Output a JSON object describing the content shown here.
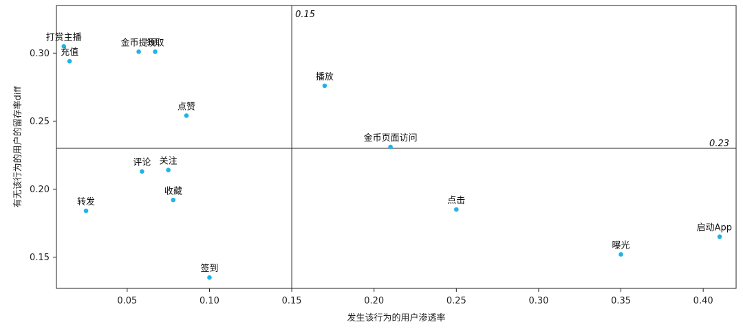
{
  "chart_data": {
    "type": "scatter",
    "xlabel": "发生该行为的用户渗透率",
    "ylabel": "有无该行为的用户的留存率diff",
    "xlim": [
      0.007,
      0.42
    ],
    "ylim": [
      0.127,
      0.335
    ],
    "x_ticks": [
      "0.05",
      "0.10",
      "0.15",
      "0.20",
      "0.25",
      "0.30",
      "0.35",
      "0.40"
    ],
    "y_ticks": [
      "0.15",
      "0.20",
      "0.25",
      "0.30"
    ],
    "grid": false,
    "point_color": "#1fb3e8",
    "reference_lines": [
      {
        "orientation": "vertical",
        "value": 0.15,
        "label": "0.15"
      },
      {
        "orientation": "horizontal",
        "value": 0.23,
        "label": "0.23"
      }
    ],
    "points": [
      {
        "label": "打赏主播",
        "x": 0.0115,
        "y": 0.305
      },
      {
        "label": "充值",
        "x": 0.015,
        "y": 0.294
      },
      {
        "label": "金币提现",
        "x": 0.057,
        "y": 0.301
      },
      {
        "label": "领取",
        "x": 0.067,
        "y": 0.301
      },
      {
        "label": "点赞",
        "x": 0.086,
        "y": 0.254
      },
      {
        "label": "评论",
        "x": 0.059,
        "y": 0.213
      },
      {
        "label": "关注",
        "x": 0.075,
        "y": 0.214
      },
      {
        "label": "收藏",
        "x": 0.078,
        "y": 0.192
      },
      {
        "label": "转发",
        "x": 0.025,
        "y": 0.184
      },
      {
        "label": "签到",
        "x": 0.1,
        "y": 0.135
      },
      {
        "label": "播放",
        "x": 0.17,
        "y": 0.276
      },
      {
        "label": "金币页面访问",
        "x": 0.21,
        "y": 0.231
      },
      {
        "label": "点击",
        "x": 0.25,
        "y": 0.185
      },
      {
        "label": "曝光",
        "x": 0.35,
        "y": 0.152
      },
      {
        "label": "启动App",
        "x": 0.41,
        "y": 0.165
      }
    ]
  }
}
